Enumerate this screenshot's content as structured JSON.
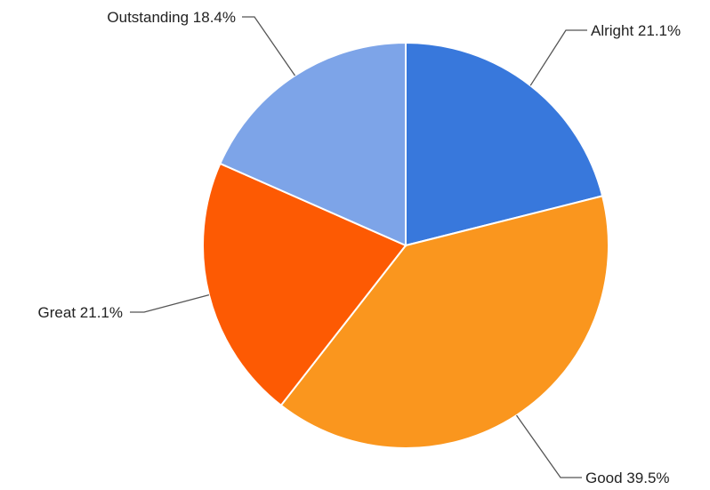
{
  "chart_data": {
    "type": "pie",
    "title": "",
    "slices": [
      {
        "label": "Alright",
        "percent_text": "21.1%",
        "value": 21.1,
        "color": "#3878DC"
      },
      {
        "label": "Good",
        "percent_text": "39.5%",
        "value": 39.5,
        "color": "#FA961E"
      },
      {
        "label": "Great",
        "percent_text": "21.1%",
        "value": 21.1,
        "color": "#FD5A03"
      },
      {
        "label": "Outstanding",
        "percent_text": "18.4%",
        "value": 18.4,
        "color": "#7DA4E8"
      }
    ],
    "start_angle": "12 o'clock",
    "direction": "clockwise",
    "labels": "outside with leader lines"
  }
}
